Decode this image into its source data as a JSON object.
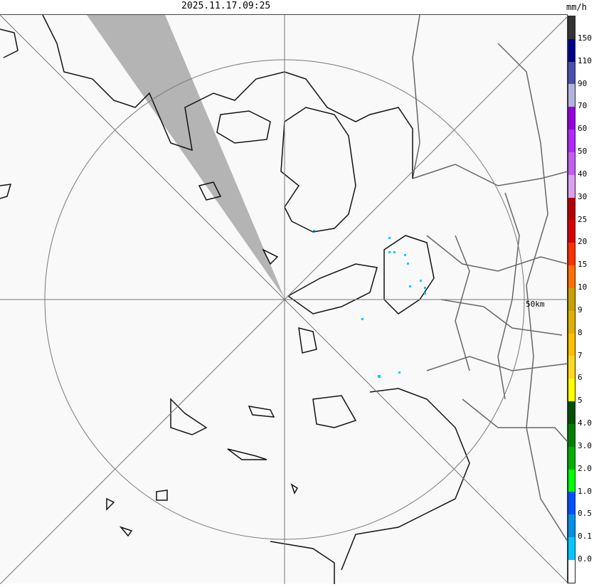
{
  "timestamp": "2025.11.17.09:25",
  "unit": "mm/h",
  "range_label": "50km",
  "legend": {
    "colors": [
      "#333333",
      "#00008c",
      "#4a50b0",
      "#b0b4dc",
      "#9600e0",
      "#b428ff",
      "#c060f0",
      "#dca0f0",
      "#b40000",
      "#d80000",
      "#ff3000",
      "#ff7000",
      "#c8a000",
      "#e0b000",
      "#ffc000",
      "#ffd820",
      "#ffff00",
      "#005000",
      "#008000",
      "#00b000",
      "#00ff00",
      "#0050ff",
      "#0090e8",
      "#00c8ff",
      "#ffffff"
    ],
    "labels": [
      "150",
      "110",
      "90",
      "70",
      "60",
      "50",
      "40",
      "30",
      "25",
      "20",
      "15",
      "10",
      "9",
      "8",
      "7",
      "6",
      "5",
      "4.0",
      "3.0",
      "2.0",
      "1.0",
      "0.5",
      "0.1",
      "0.0"
    ]
  },
  "echo_color": "#00c8ff",
  "blocked_sector_color": "#b4b4b4"
}
